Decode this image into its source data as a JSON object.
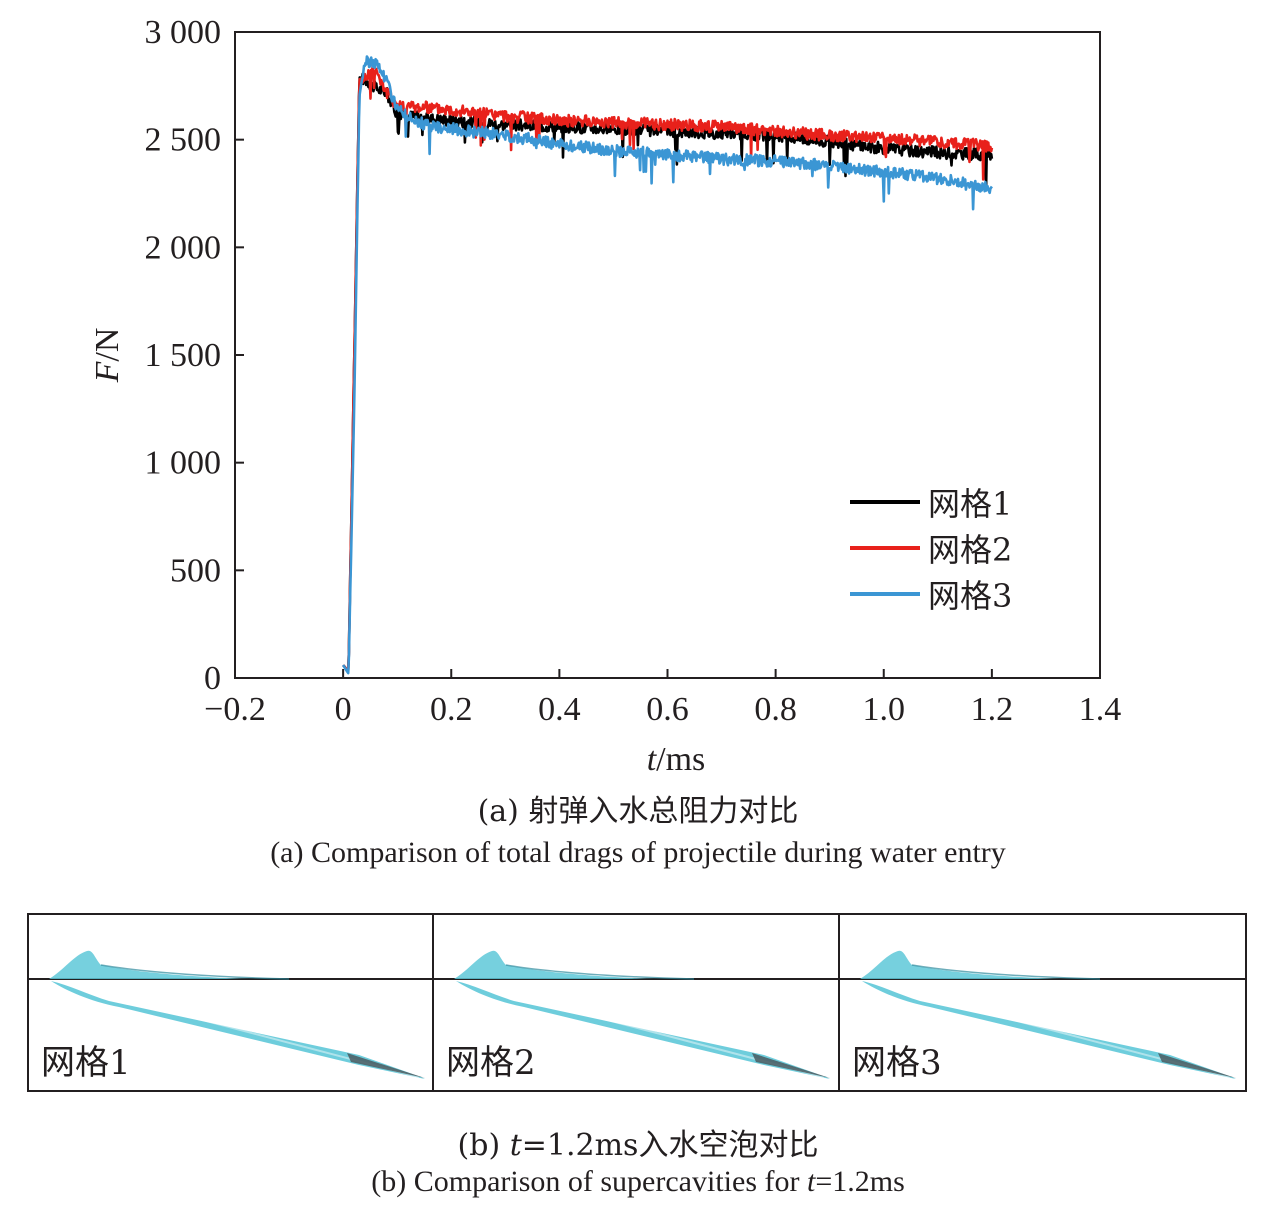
{
  "chart_data": {
    "type": "line",
    "xlabel_var": "t",
    "xlabel_unit": "/ms",
    "ylabel_var": "F",
    "ylabel_unit": "/N",
    "xlim": [
      -0.2,
      1.4
    ],
    "ylim": [
      0,
      3000
    ],
    "xticks": [
      -0.2,
      0,
      0.2,
      0.4,
      0.6,
      0.8,
      1.0,
      1.2,
      1.4
    ],
    "xtick_labels": [
      "−0.2",
      "0",
      "0.2",
      "0.4",
      "0.6",
      "0.8",
      "1.0",
      "1.2",
      "1.4"
    ],
    "yticks": [
      0,
      500,
      1000,
      1500,
      2000,
      2500,
      3000
    ],
    "ytick_labels": [
      "0",
      "500",
      "1 000",
      "1 500",
      "2 000",
      "2 500",
      "3 000"
    ],
    "legend_position": "lower-right",
    "series": [
      {
        "name": "网格1",
        "color": "#000000",
        "x": [
          0,
          0.01,
          0.02,
          0.03,
          0.04,
          0.06,
          0.08,
          0.1,
          0.15,
          0.2,
          0.3,
          0.4,
          0.5,
          0.6,
          0.7,
          0.8,
          0.9,
          1.0,
          1.1,
          1.2
        ],
        "y": [
          60,
          30,
          1400,
          2790,
          2780,
          2740,
          2720,
          2620,
          2600,
          2590,
          2570,
          2560,
          2550,
          2540,
          2530,
          2520,
          2490,
          2460,
          2440,
          2430
        ]
      },
      {
        "name": "网格2",
        "color": "#e8211b",
        "x": [
          0,
          0.01,
          0.02,
          0.03,
          0.04,
          0.06,
          0.08,
          0.1,
          0.15,
          0.2,
          0.3,
          0.4,
          0.5,
          0.6,
          0.7,
          0.8,
          0.9,
          1.0,
          1.1,
          1.2
        ],
        "y": [
          60,
          30,
          1400,
          2780,
          2790,
          2830,
          2720,
          2660,
          2650,
          2640,
          2610,
          2590,
          2580,
          2570,
          2560,
          2540,
          2520,
          2510,
          2490,
          2470
        ]
      },
      {
        "name": "网格3",
        "color": "#3b96d4",
        "x": [
          0,
          0.01,
          0.02,
          0.03,
          0.04,
          0.06,
          0.08,
          0.1,
          0.15,
          0.2,
          0.3,
          0.4,
          0.5,
          0.6,
          0.7,
          0.8,
          0.9,
          1.0,
          1.1,
          1.2
        ],
        "y": [
          60,
          20,
          1200,
          2700,
          2860,
          2860,
          2780,
          2640,
          2570,
          2550,
          2520,
          2480,
          2450,
          2430,
          2410,
          2400,
          2380,
          2350,
          2320,
          2270
        ]
      }
    ]
  },
  "captions": {
    "a_cn": "(a) 射弹入水总阻力对比",
    "a_en": "(a) Comparison of total drags of projectile during water entry",
    "b_cn_prefix": "(b) ",
    "b_cn_var": "t",
    "b_cn_suffix": "=1.2ms入水空泡对比",
    "b_en_prefix": "(b) Comparison of supercavities for ",
    "b_en_var": "t",
    "b_en_suffix": "=1.2ms"
  },
  "panels": [
    {
      "label": "网格1"
    },
    {
      "label": "网格2"
    },
    {
      "label": "网格3"
    }
  ],
  "colors": {
    "cavity_fill": "#5ec8d8",
    "cavity_dark": "#2f8a9c",
    "axis": "#231f20"
  }
}
